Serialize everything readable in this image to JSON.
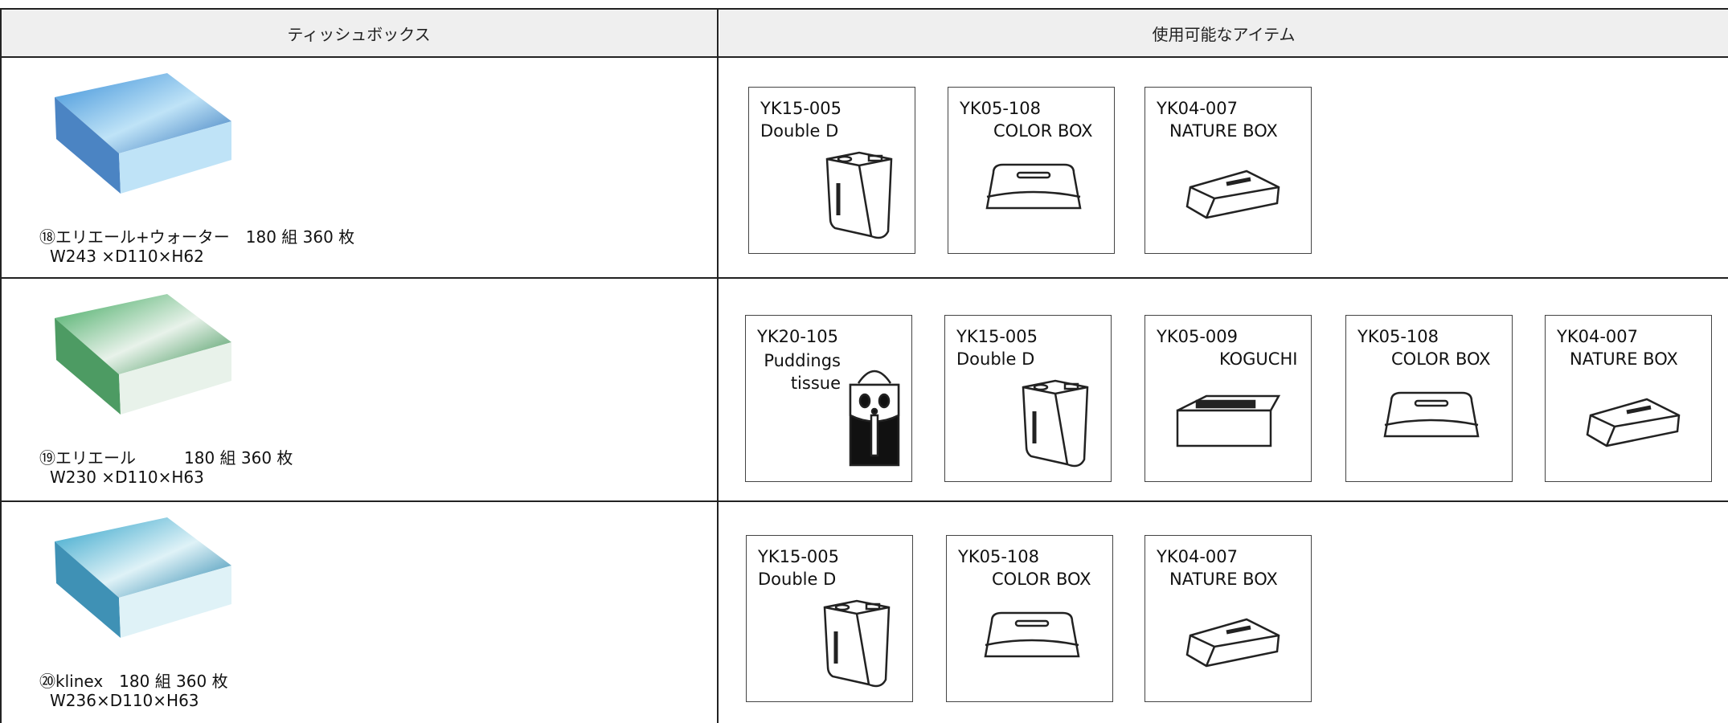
{
  "header": {
    "columns": [
      "ティッシュボックス",
      "使用可能なアイテム"
    ]
  },
  "table": {
    "rows": [
      {
        "product": {
          "name": "⑱エリエール+ウォーター　180 組 360 枚",
          "size": "W243 ×D110×H62"
        },
        "items": [
          {
            "code": "YK15-005",
            "name": "Double D"
          },
          {
            "code": "YK05-108",
            "name": "COLOR BOX"
          },
          {
            "code": "YK04-007",
            "name": "NATURE BOX"
          }
        ]
      },
      {
        "product": {
          "name": "⑲エリエール　　　180 組 360 枚",
          "size": "W230 ×D110×H63"
        },
        "items": [
          {
            "code": "YK20-105",
            "name": "Puddings tissue"
          },
          {
            "code": "YK15-005",
            "name": "Double D"
          },
          {
            "code": "YK05-009",
            "name": "KOGUCHI"
          },
          {
            "code": "YK05-108",
            "name": "COLOR BOX"
          },
          {
            "code": "YK04-007",
            "name": "NATURE BOX"
          }
        ]
      },
      {
        "product": {
          "name": "⑳klinex　180 組 360 枚",
          "size": "W236×D110×H63"
        },
        "items": [
          {
            "code": "YK15-005",
            "name": "Double D"
          },
          {
            "code": "YK05-108",
            "name": "COLOR BOX"
          },
          {
            "code": "YK04-007",
            "name": "NATURE BOX"
          }
        ]
      }
    ]
  }
}
